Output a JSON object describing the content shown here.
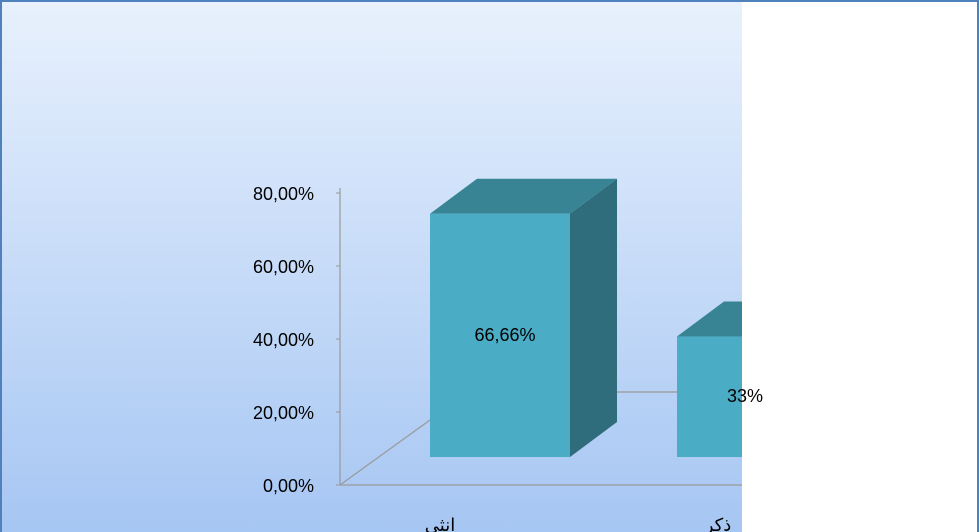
{
  "chart_data": {
    "type": "bar3d",
    "categories": [
      "انثى",
      "ذكر"
    ],
    "values": [
      66.66,
      33
    ],
    "value_labels": [
      "66,66%",
      "33%"
    ],
    "color": "#4bacc6",
    "ylim": [
      0,
      80
    ],
    "yticks": [
      {
        "value": 0,
        "label": "0,00%"
      },
      {
        "value": 20,
        "label": "20,00%"
      },
      {
        "value": 40,
        "label": "40,00%"
      },
      {
        "value": 60,
        "label": "60,00%"
      },
      {
        "value": 80,
        "label": "80,00%"
      }
    ]
  }
}
